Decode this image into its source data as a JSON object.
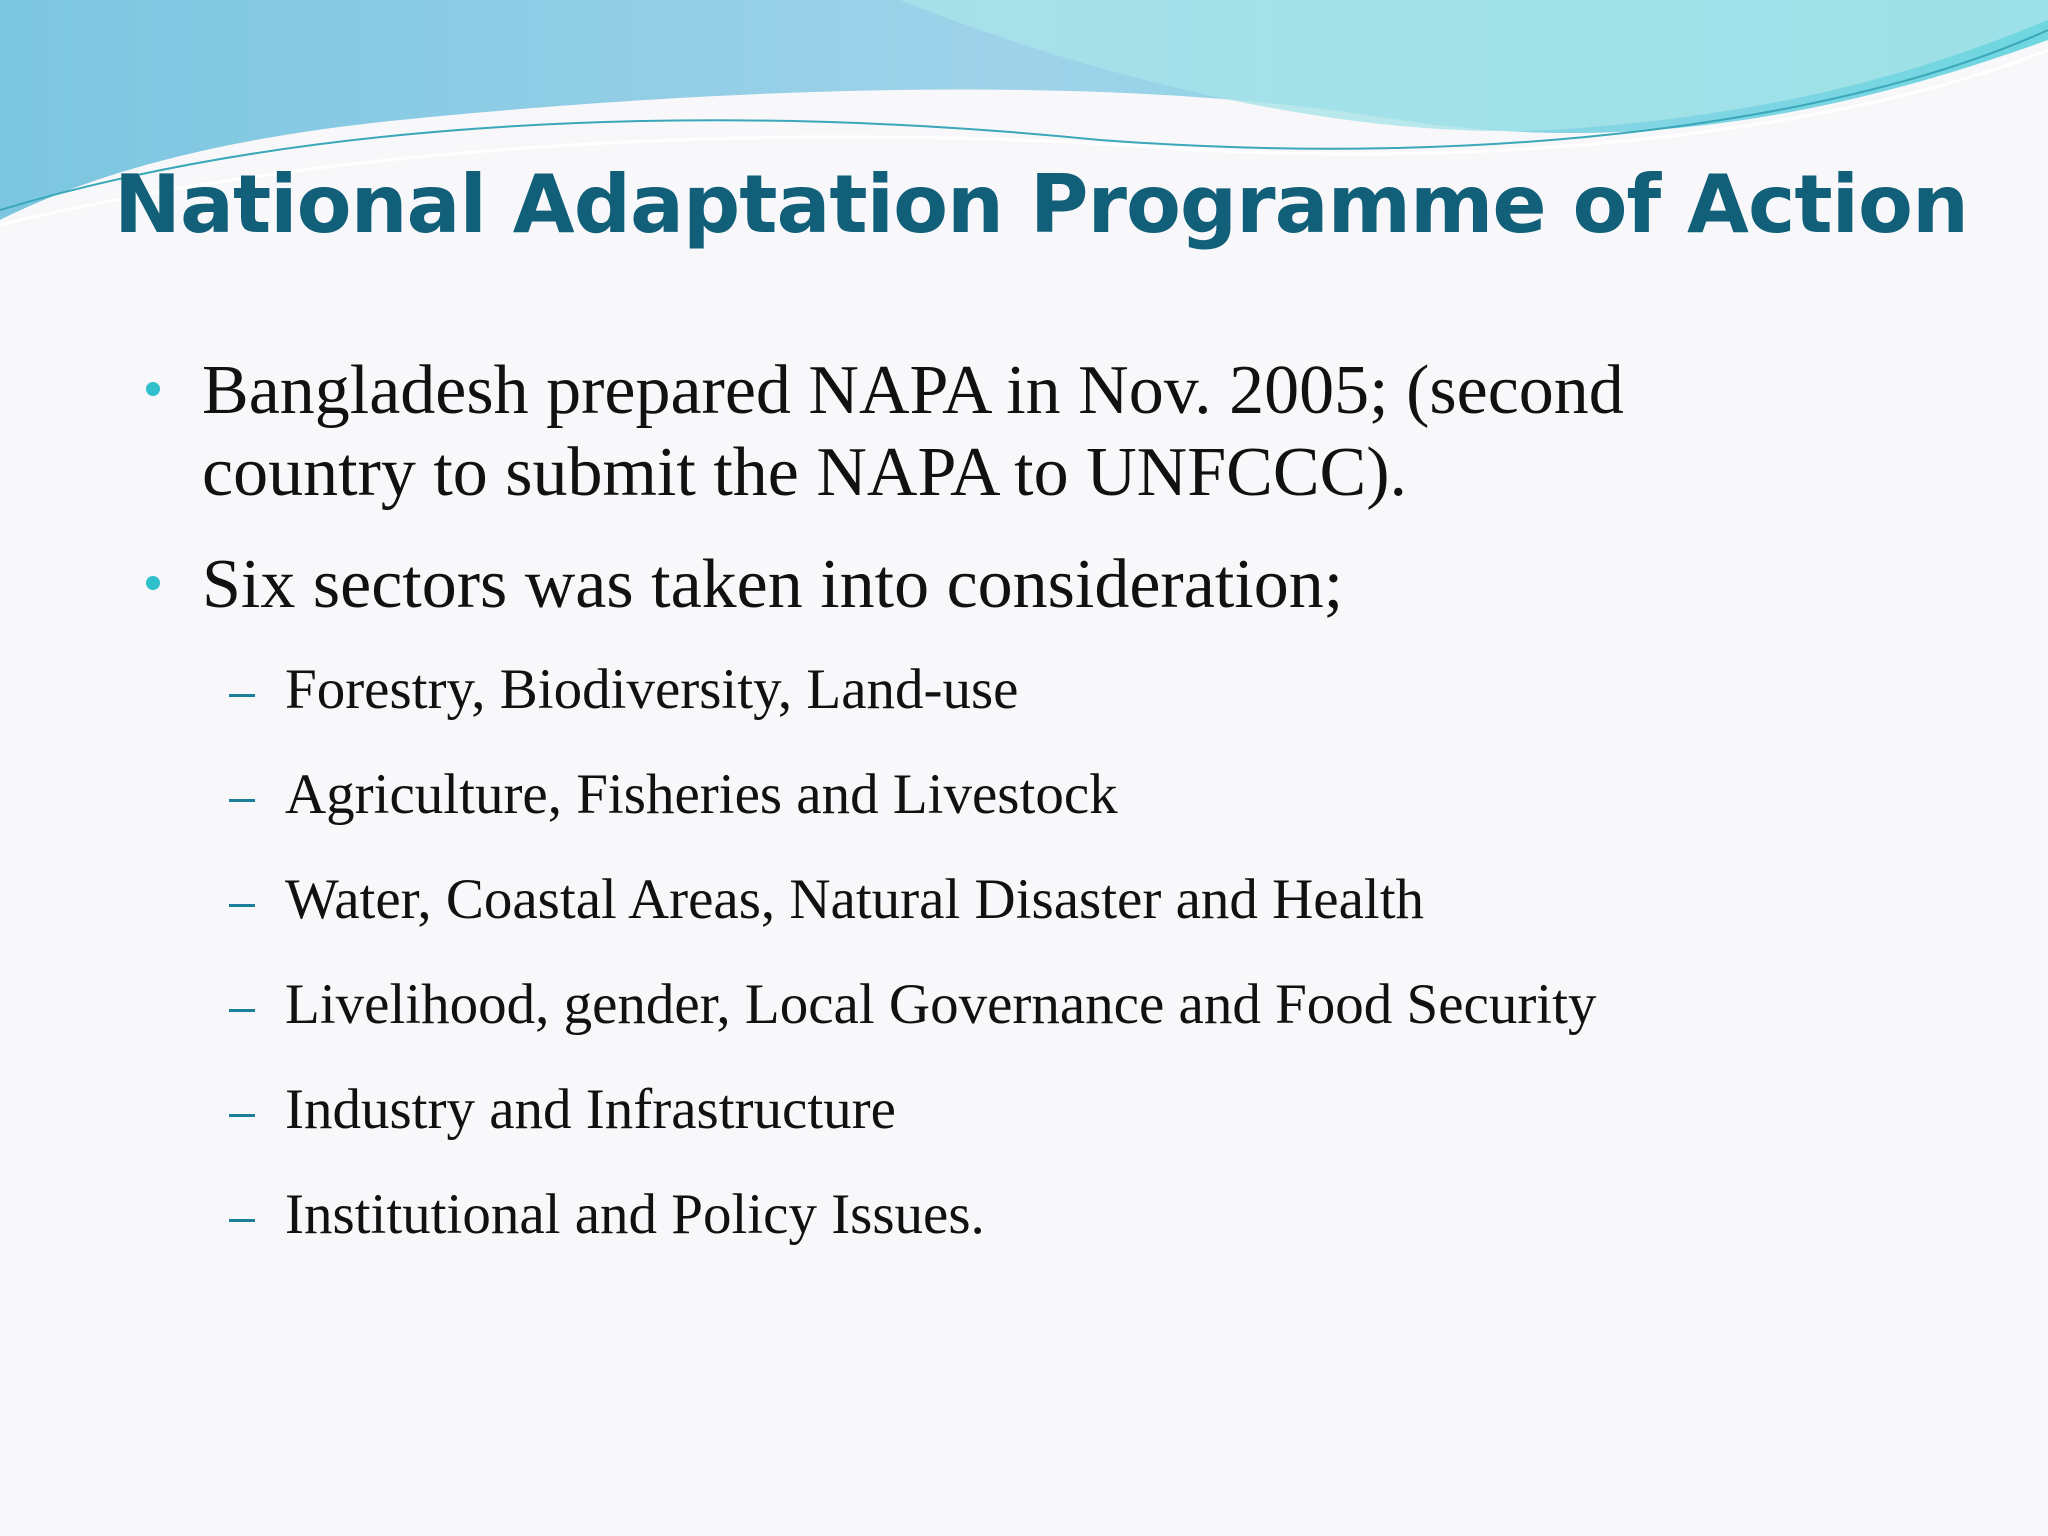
{
  "title": "National Adaptation Programme of Action",
  "bullets": [
    {
      "text": "Bangladesh prepared NAPA in Nov. 2005; (second country to submit the NAPA to UNFCCC).",
      "sub": []
    },
    {
      "text": "Six sectors was taken into consideration;",
      "sub": [
        "Forestry, Biodiversity, Land-use",
        "Agriculture, Fisheries and Livestock",
        "Water, Coastal Areas, Natural Disaster and Health",
        "Livelihood, gender, Local Governance and Food Security",
        "Industry and Infrastructure",
        "Institutional and Policy Issues."
      ]
    }
  ]
}
